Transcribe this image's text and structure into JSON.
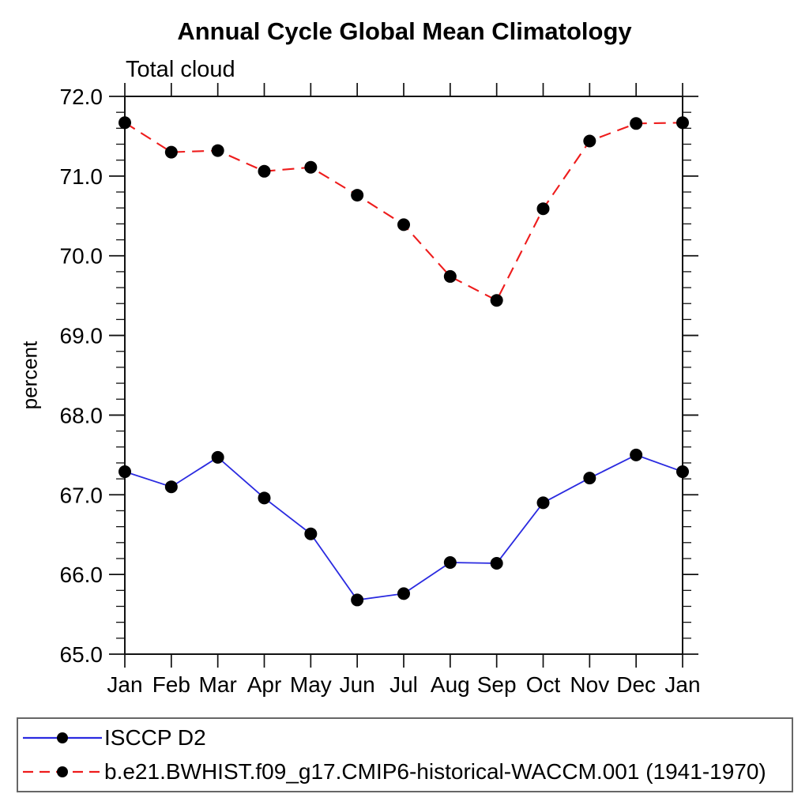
{
  "chart_data": {
    "type": "line",
    "title": "Annual Cycle Global Mean Climatology",
    "subtitle": "Total cloud",
    "ylabel": "percent",
    "xlabel": "",
    "ylim": [
      65.0,
      72.0
    ],
    "ytick_step": 1.0,
    "ytick_minor_step": 0.2,
    "ytick_decimals": 1,
    "grid": false,
    "axis_color": "#111111",
    "legend_position": "bottom-box-full-width",
    "categories": [
      "Jan",
      "Feb",
      "Mar",
      "Apr",
      "May",
      "Jun",
      "Jul",
      "Aug",
      "Sep",
      "Oct",
      "Nov",
      "Dec",
      "Jan"
    ],
    "series": [
      {
        "name": "ISCCP D2",
        "color": "#2a2ae0",
        "line_style": "solid",
        "marker": "filled-circle",
        "marker_color": "#000000",
        "values": [
          67.29,
          67.1,
          67.47,
          66.96,
          66.51,
          65.68,
          65.76,
          66.15,
          66.14,
          66.9,
          67.21,
          67.5,
          67.29
        ]
      },
      {
        "name": "b.e21.BWHIST.f09_g17.CMIP6-historical-WACCM.001 (1941-1970)",
        "color": "#ee1c1c",
        "line_style": "dashed",
        "marker": "filled-circle",
        "marker_color": "#000000",
        "values": [
          71.67,
          71.3,
          71.32,
          71.06,
          71.11,
          70.76,
          70.39,
          69.74,
          69.44,
          70.59,
          71.44,
          71.66,
          71.67
        ]
      }
    ]
  }
}
